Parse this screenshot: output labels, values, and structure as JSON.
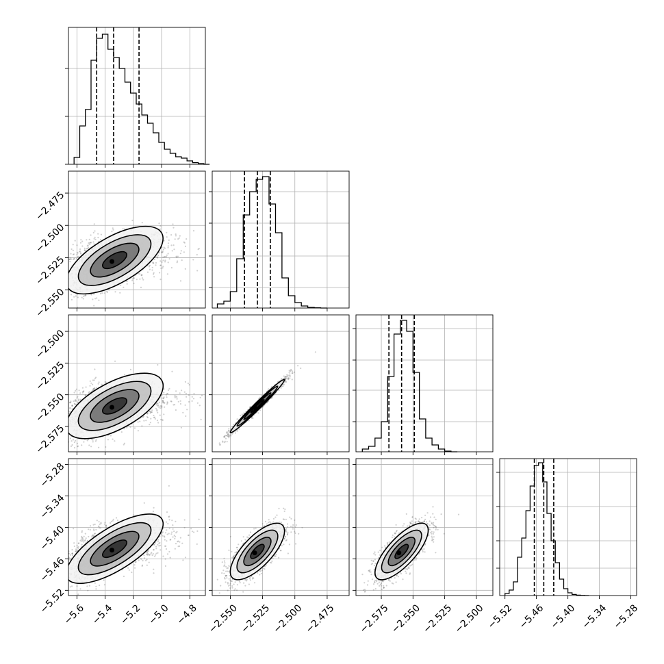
{
  "chart_data": {
    "type": "corner",
    "colors": {
      "line": "#000000",
      "grid": "#b0b0b0",
      "points": "#555555",
      "background": "#ffffff"
    },
    "grid": true,
    "quantile_line_style": "dashed",
    "params": [
      {
        "range": [
          -5.66,
          -4.69
        ],
        "ticks": [
          -5.6,
          -5.4,
          -5.2,
          -5.0,
          -4.8
        ],
        "tick_labels": [
          "−5.6",
          "−5.4",
          "−5.2",
          "−5.0",
          "−4.8"
        ],
        "quantiles": [
          -5.46,
          -5.34,
          -5.16
        ],
        "hist_bins": [
          -5.62,
          -5.58,
          -5.54,
          -5.5,
          -5.46,
          -5.42,
          -5.38,
          -5.34,
          -5.3,
          -5.26,
          -5.22,
          -5.18,
          -5.14,
          -5.1,
          -5.06,
          -5.02,
          -4.98,
          -4.94,
          -4.9,
          -4.86,
          -4.82,
          -4.78,
          -4.74,
          -4.7
        ],
        "hist_values": [
          0.05,
          0.28,
          0.4,
          0.76,
          0.92,
          0.95,
          0.84,
          0.78,
          0.7,
          0.6,
          0.52,
          0.44,
          0.36,
          0.3,
          0.23,
          0.16,
          0.11,
          0.08,
          0.055,
          0.045,
          0.025,
          0.012,
          0.005,
          0.0
        ],
        "hist_ylim": [
          0,
          1.0
        ],
        "hist_yticks": [
          0.0,
          0.35,
          0.7
        ]
      },
      {
        "range": [
          -2.564,
          -2.458
        ],
        "ticks": [
          -2.55,
          -2.525,
          -2.5,
          -2.475
        ],
        "tick_labels": [
          "−2.550",
          "−2.525",
          "−2.500",
          "−2.475"
        ],
        "quantiles": [
          -2.539,
          -2.529,
          -2.519
        ],
        "hist_bins": [
          -2.56,
          -2.555,
          -2.55,
          -2.545,
          -2.54,
          -2.535,
          -2.53,
          -2.525,
          -2.52,
          -2.515,
          -2.51,
          -2.505,
          -2.5,
          -2.495,
          -2.49,
          -2.485,
          -2.48
        ],
        "hist_values": [
          0.03,
          0.05,
          0.12,
          0.36,
          0.68,
          0.85,
          0.94,
          0.96,
          0.76,
          0.55,
          0.22,
          0.09,
          0.04,
          0.015,
          0.005,
          0.002,
          0.0
        ],
        "hist_ylim": [
          0,
          1.0
        ],
        "hist_yticks": [
          0.15,
          0.38,
          0.62,
          0.85
        ]
      },
      {
        "range": [
          -2.595,
          -2.487
        ],
        "ticks": [
          -2.575,
          -2.55,
          -2.525,
          -2.5
        ],
        "tick_labels": [
          "−2.575",
          "−2.550",
          "−2.525",
          "−2.500"
        ],
        "quantiles": [
          -2.569,
          -2.559,
          -2.549
        ],
        "hist_bins": [
          -2.59,
          -2.585,
          -2.58,
          -2.575,
          -2.57,
          -2.565,
          -2.56,
          -2.555,
          -2.55,
          -2.545,
          -2.54,
          -2.535,
          -2.53,
          -2.525,
          -2.52
        ],
        "hist_values": [
          0.02,
          0.04,
          0.1,
          0.22,
          0.55,
          0.86,
          0.96,
          0.88,
          0.58,
          0.24,
          0.1,
          0.05,
          0.02,
          0.005,
          0.0
        ],
        "hist_ylim": [
          0,
          1.0
        ],
        "hist_yticks": [
          0.22,
          0.45,
          0.67,
          0.9
        ]
      },
      {
        "range": [
          -5.53,
          -5.269
        ],
        "ticks": [
          -5.52,
          -5.46,
          -5.4,
          -5.34,
          -5.28
        ],
        "tick_labels": [
          "−5.52",
          "−5.46",
          "−5.40",
          "−5.34",
          "−5.28"
        ],
        "quantiles": [
          -5.464,
          -5.446,
          -5.427
        ],
        "hist_bins": [
          -5.52,
          -5.512,
          -5.504,
          -5.496,
          -5.488,
          -5.48,
          -5.472,
          -5.464,
          -5.456,
          -5.448,
          -5.44,
          -5.432,
          -5.424,
          -5.416,
          -5.408,
          -5.4,
          -5.392,
          -5.384,
          -5.376,
          -5.368
        ],
        "hist_values": [
          0.015,
          0.04,
          0.1,
          0.28,
          0.42,
          0.62,
          0.8,
          0.95,
          0.97,
          0.83,
          0.6,
          0.4,
          0.24,
          0.12,
          0.05,
          0.02,
          0.008,
          0.003,
          0.001,
          0.0
        ],
        "hist_ylim": [
          0,
          1.0
        ],
        "hist_yticks": [
          0.2,
          0.4,
          0.65,
          0.9
        ]
      }
    ],
    "pairs": [
      {
        "row": 1,
        "col": 0,
        "mean": [
          -5.42,
          -2.529
        ],
        "sd": [
          0.13,
          0.011
        ],
        "rho": 0.45,
        "skew": true
      },
      {
        "row": 2,
        "col": 0,
        "mean": [
          -5.42,
          -2.561
        ],
        "sd": [
          0.13,
          0.011
        ],
        "rho": 0.42,
        "skew": true
      },
      {
        "row": 2,
        "col": 1,
        "mean": [
          -2.529,
          -2.559
        ],
        "sd": [
          0.0105,
          0.0105
        ],
        "rho": 0.985,
        "skew": false
      },
      {
        "row": 3,
        "col": 0,
        "mean": [
          -5.42,
          -5.446
        ],
        "sd": [
          0.13,
          0.027
        ],
        "rho": 0.55,
        "skew": true
      },
      {
        "row": 3,
        "col": 1,
        "mean": [
          -2.529,
          -5.446
        ],
        "sd": [
          0.0105,
          0.027
        ],
        "rho": 0.72,
        "skew": false
      },
      {
        "row": 3,
        "col": 2,
        "mean": [
          -2.559,
          -5.446
        ],
        "sd": [
          0.0105,
          0.027
        ],
        "rho": 0.75,
        "skew": false
      }
    ]
  }
}
